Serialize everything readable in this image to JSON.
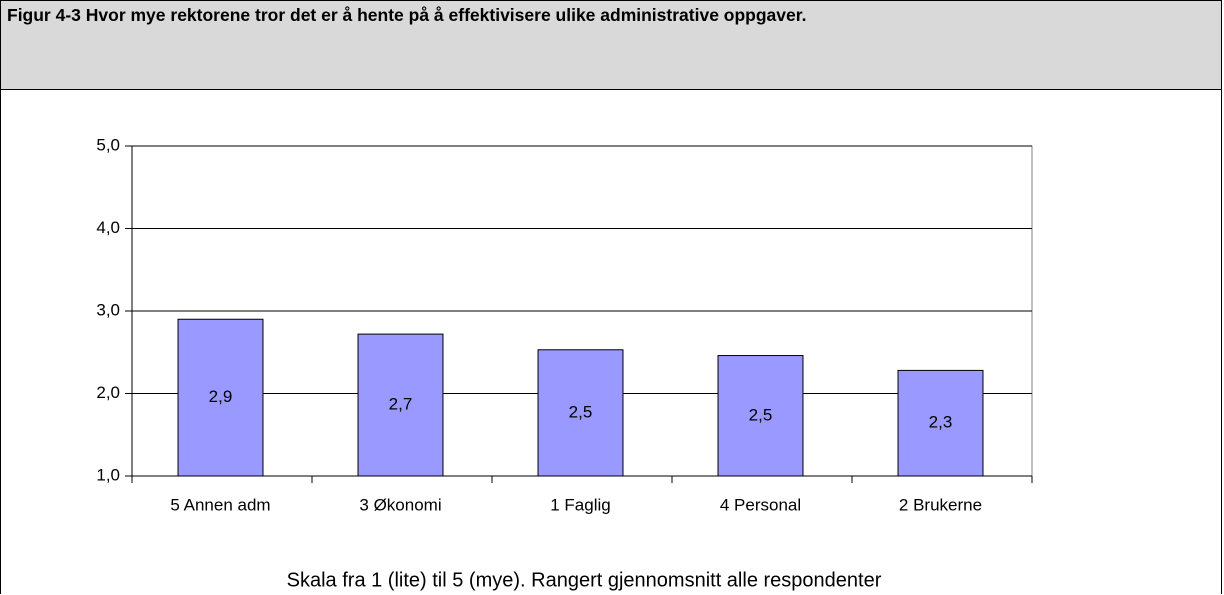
{
  "chart_data": {
    "type": "bar",
    "title": "Figur 4-3 Hvor mye rektorene tror det er å hente på å effektivisere ulike administrative oppgaver.",
    "caption": "Skala fra 1 (lite) til 5 (mye). Rangert gjennomsnitt alle respondenter",
    "categories": [
      "5 Annen adm",
      "3 Økonomi",
      "1 Faglig",
      "4 Personal",
      "2 Brukerne"
    ],
    "values": [
      2.9,
      2.72,
      2.53,
      2.46,
      2.28
    ],
    "value_labels": [
      "2,9",
      "2,7",
      "2,5",
      "2,5",
      "2,3"
    ],
    "color": "#9999ff",
    "ylim": [
      1,
      5
    ],
    "yticks": [
      {
        "value": 1,
        "label": "1,0"
      },
      {
        "value": 2,
        "label": "2,0"
      },
      {
        "value": 3,
        "label": "3,0"
      },
      {
        "value": 4,
        "label": "4,0"
      },
      {
        "value": 5,
        "label": "5,0"
      }
    ],
    "grid": true
  }
}
